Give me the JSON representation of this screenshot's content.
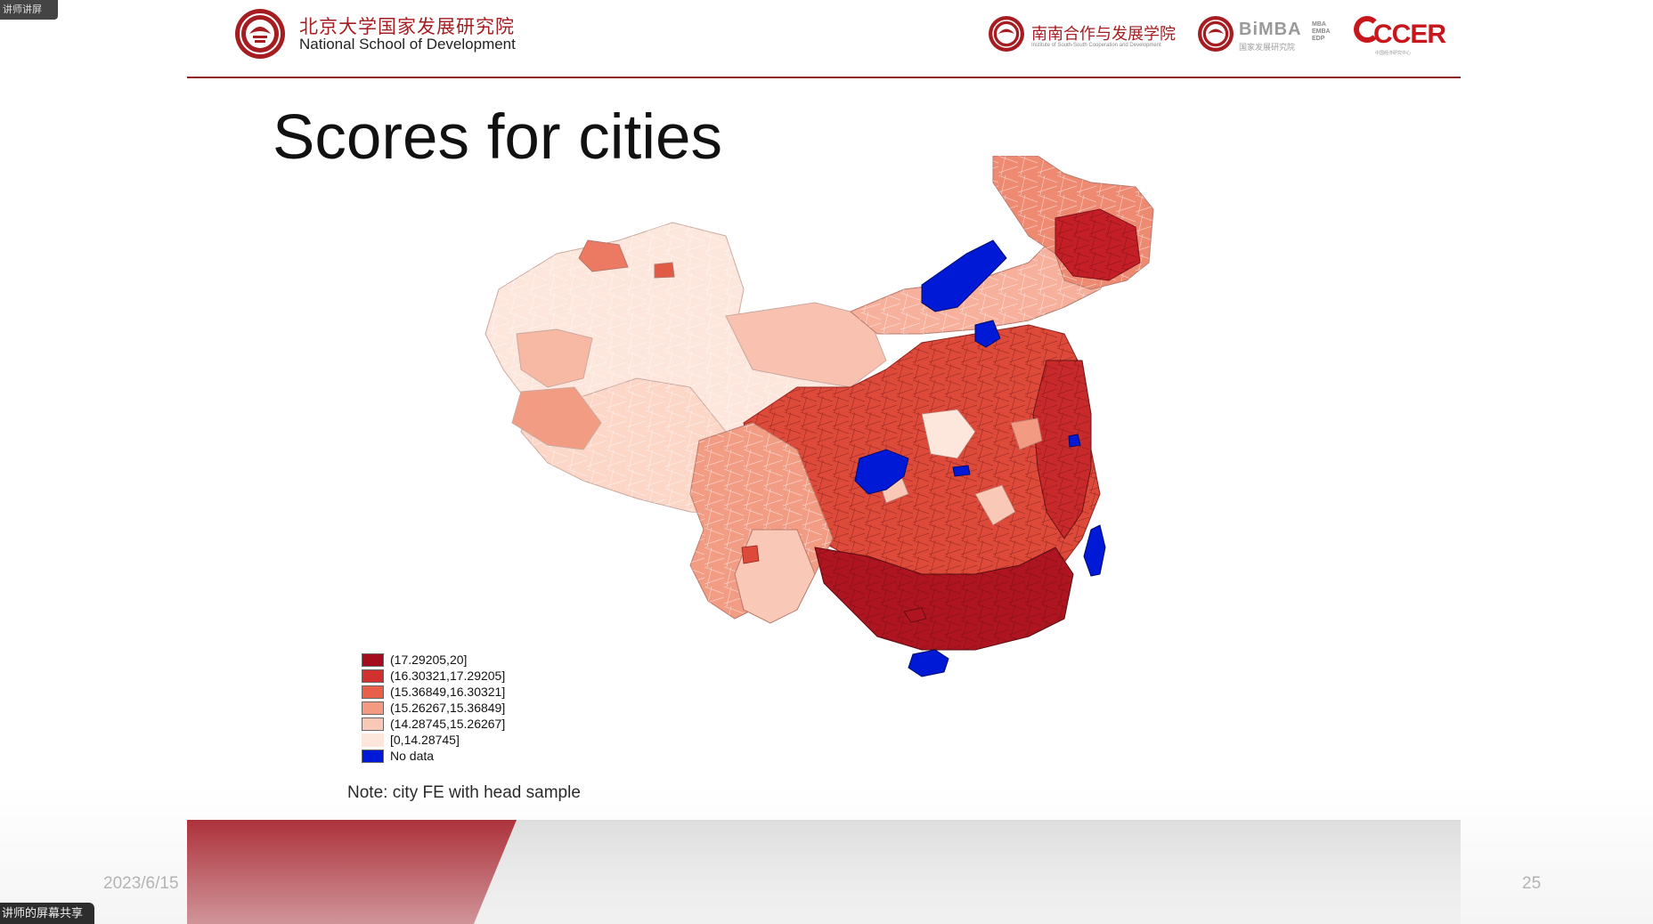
{
  "window": {
    "corner_tag": "讲师讲屏",
    "share_tag": "讲师的屏幕共享"
  },
  "header": {
    "institution_cn": "北京大学国家发展研究院",
    "institution_en": "National School of Development",
    "partner_ssc_cn": "南南合作与发展学院",
    "partner_ssc_en": "Institute of South-South Cooperation and Development",
    "partner_bimba": "BiMBA",
    "partner_bimba_cn": "国家发展研究院",
    "partner_bimba_tags": "MBA EMBA EDP",
    "partner_ccer": "CCER",
    "partner_ccer_sub": "中国经济研究中心"
  },
  "slide": {
    "title": "Scores for cities",
    "note": "Note: city FE with head sample",
    "date": "2023/6/15",
    "page_number": "25"
  },
  "legend": {
    "items": [
      {
        "label": "(17.29205,20]",
        "color": "#a30d1d"
      },
      {
        "label": "(16.30321,17.29205]",
        "color": "#d0302e"
      },
      {
        "label": "(15.36849,16.30321]",
        "color": "#e8604a"
      },
      {
        "label": "(15.26267,15.36849]",
        "color": "#f39a83"
      },
      {
        "label": "(14.28745,15.26267]",
        "color": "#f9c8b6"
      },
      {
        "label": "[0,14.28745]",
        "color": "#fde6dc"
      },
      {
        "label": "No data",
        "color": "#0019d6"
      }
    ]
  }
}
